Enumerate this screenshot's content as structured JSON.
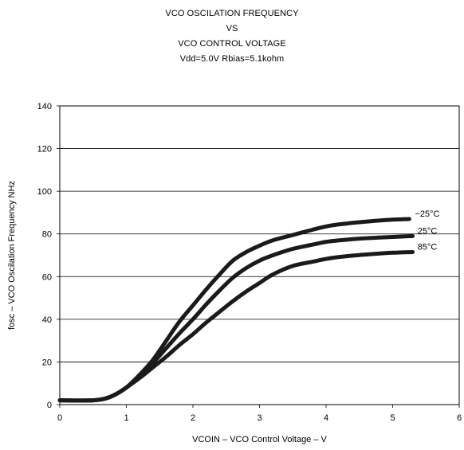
{
  "chart_data": {
    "type": "line",
    "title_lines": [
      "VCO OSCILATION FREQUENCY",
      "VS",
      "VCO CONTROL VOLTAGE",
      "Vdd=5.0V Rbias=5.1kohm"
    ],
    "xlabel": "VCOIN – VCO Control Voltage – V",
    "ylabel": "fosc – VCO Oscilation Frequency NHz",
    "xlim": [
      0,
      6
    ],
    "ylim": [
      0,
      140
    ],
    "x_ticks": [
      "0",
      "1",
      "2",
      "3",
      "4",
      "5",
      "6"
    ],
    "y_ticks": [
      "0",
      "20",
      "40",
      "60",
      "80",
      "100",
      "120",
      "140"
    ],
    "grid": "horizontal",
    "series": [
      {
        "name": "−25°C",
        "x": [
          0,
          0.5,
          0.7,
          0.85,
          1.0,
          1.2,
          1.4,
          1.6,
          1.8,
          2.0,
          2.2,
          2.4,
          2.6,
          2.8,
          3.0,
          3.2,
          3.5,
          3.8,
          4.0,
          4.2,
          4.5,
          4.8,
          5.0,
          5.25
        ],
        "y": [
          2,
          2,
          3,
          5,
          8,
          14,
          21,
          30,
          39,
          46.5,
          54,
          61,
          67.5,
          71.5,
          74.5,
          77,
          79.5,
          82,
          83.5,
          84.5,
          85.5,
          86.3,
          86.7,
          87
        ]
      },
      {
        "name": "25°C",
        "x": [
          0,
          0.5,
          0.7,
          0.85,
          1.0,
          1.2,
          1.4,
          1.6,
          1.8,
          2.0,
          2.2,
          2.4,
          2.6,
          2.8,
          3.0,
          3.2,
          3.5,
          3.8,
          4.0,
          4.2,
          4.5,
          4.8,
          5.0,
          5.3
        ],
        "y": [
          2,
          2,
          3,
          5,
          8,
          13,
          19.5,
          26.5,
          33.5,
          40,
          47,
          53.5,
          59.5,
          64,
          67.5,
          70,
          73,
          75,
          76.3,
          77,
          77.8,
          78.3,
          78.6,
          79
        ]
      },
      {
        "name": "85°C",
        "x": [
          0,
          0.5,
          0.7,
          0.85,
          1.0,
          1.2,
          1.4,
          1.6,
          1.8,
          2.0,
          2.2,
          2.4,
          2.6,
          2.8,
          3.0,
          3.2,
          3.5,
          3.8,
          4.0,
          4.2,
          4.5,
          4.8,
          5.0,
          5.3
        ],
        "y": [
          2,
          2,
          3,
          5,
          8,
          12.5,
          17.5,
          22.5,
          28,
          33,
          38.5,
          43.5,
          48.5,
          53,
          57,
          61,
          65,
          67,
          68.3,
          69.2,
          70.1,
          70.8,
          71.2,
          71.5
        ]
      }
    ]
  }
}
